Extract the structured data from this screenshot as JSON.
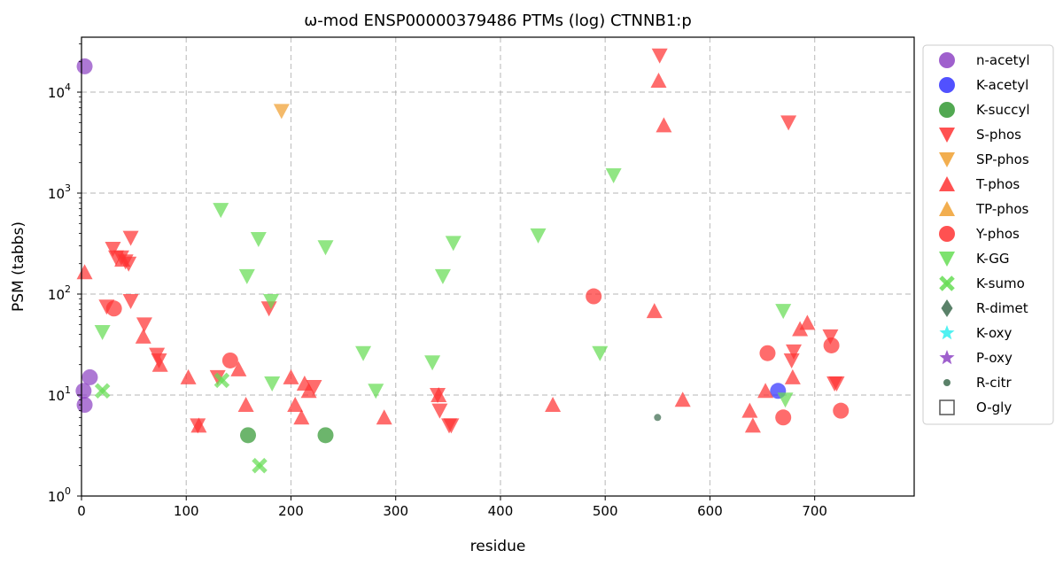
{
  "chart_data": {
    "type": "scatter",
    "title": "ω-mod ENSP00000379486 PTMs (log) CTNNB1:p",
    "xlabel": "residue",
    "ylabel": "PSM (tabbs)",
    "xlim": [
      0,
      795
    ],
    "ylim": [
      1,
      35000
    ],
    "yscale": "log",
    "xticks": [
      "0",
      "100",
      "200",
      "300",
      "400",
      "500",
      "600",
      "700"
    ],
    "xtick_values": [
      0,
      100,
      200,
      300,
      400,
      500,
      600,
      700
    ],
    "yticks": [
      "10",
      "10",
      "10",
      "10",
      "10"
    ],
    "ytick_exps": [
      "0",
      "1",
      "2",
      "3",
      "4"
    ],
    "ytick_values": [
      1,
      10,
      100,
      1000,
      10000
    ],
    "grid": true,
    "legend_position": "right-outside",
    "series": [
      {
        "name": "n-acetyl",
        "color": "#8e44c4",
        "marker": "circle",
        "points": [
          [
            3,
            18000
          ],
          [
            2,
            11
          ],
          [
            3,
            8
          ],
          [
            8,
            15
          ]
        ]
      },
      {
        "name": "K-acetyl",
        "color": "#3333ff",
        "marker": "circle",
        "points": [
          [
            665,
            11
          ]
        ]
      },
      {
        "name": "K-succyl",
        "color": "#339933",
        "marker": "circle",
        "points": [
          [
            159,
            4
          ],
          [
            233,
            4
          ]
        ]
      },
      {
        "name": "S-phos",
        "color": "#ff3333",
        "marker": "triangle-down",
        "points": [
          [
            30,
            280
          ],
          [
            33,
            230
          ],
          [
            38,
            230
          ],
          [
            42,
            210
          ],
          [
            45,
            200
          ],
          [
            47,
            360
          ],
          [
            24,
            75
          ],
          [
            47,
            85
          ],
          [
            60,
            50
          ],
          [
            72,
            25
          ],
          [
            74,
            22
          ],
          [
            111,
            5
          ],
          [
            130,
            15
          ],
          [
            179,
            72
          ],
          [
            222,
            12
          ],
          [
            340,
            10
          ],
          [
            342,
            7
          ],
          [
            351,
            5
          ],
          [
            353,
            5
          ],
          [
            552,
            23000
          ],
          [
            675,
            5000
          ],
          [
            680,
            27
          ],
          [
            678,
            22
          ],
          [
            715,
            38
          ],
          [
            719,
            13
          ],
          [
            721,
            13
          ]
        ]
      },
      {
        "name": "SP-phos",
        "color": "#f0a030",
        "marker": "triangle-down",
        "points": [
          [
            191,
            6500
          ]
        ]
      },
      {
        "name": "T-phos",
        "color": "#ff3333",
        "marker": "triangle-up",
        "points": [
          [
            3,
            165
          ],
          [
            39,
            220
          ],
          [
            59,
            38
          ],
          [
            75,
            20
          ],
          [
            102,
            15
          ],
          [
            112,
            5
          ],
          [
            150,
            18
          ],
          [
            157,
            8
          ],
          [
            200,
            15
          ],
          [
            204,
            8
          ],
          [
            213,
            13
          ],
          [
            210,
            6
          ],
          [
            217,
            11
          ],
          [
            289,
            6
          ],
          [
            341,
            10
          ],
          [
            450,
            8
          ],
          [
            547,
            68
          ],
          [
            551,
            13000
          ],
          [
            556,
            4700
          ],
          [
            574,
            9
          ],
          [
            638,
            7
          ],
          [
            641,
            5
          ],
          [
            653,
            11
          ],
          [
            679,
            15
          ],
          [
            686,
            45
          ],
          [
            693,
            52
          ]
        ]
      },
      {
        "name": "TP-phos",
        "color": "#f0a030",
        "marker": "triangle-up",
        "points": []
      },
      {
        "name": "Y-phos",
        "color": "#ff3333",
        "marker": "circle",
        "points": [
          [
            31,
            72
          ],
          [
            142,
            22
          ],
          [
            489,
            95
          ],
          [
            655,
            26
          ],
          [
            670,
            6
          ],
          [
            716,
            31
          ],
          [
            725,
            7
          ]
        ]
      },
      {
        "name": "K-GG",
        "color": "#66dd55",
        "marker": "triangle-down",
        "points": [
          [
            20,
            42
          ],
          [
            133,
            680
          ],
          [
            158,
            150
          ],
          [
            169,
            350
          ],
          [
            181,
            85
          ],
          [
            182,
            13
          ],
          [
            233,
            290
          ],
          [
            269,
            26
          ],
          [
            281,
            11
          ],
          [
            335,
            21
          ],
          [
            345,
            150
          ],
          [
            355,
            320
          ],
          [
            436,
            380
          ],
          [
            495,
            26
          ],
          [
            508,
            1500
          ],
          [
            670,
            68
          ],
          [
            672,
            9
          ]
        ]
      },
      {
        "name": "K-sumo",
        "color": "#66dd55",
        "marker": "x",
        "points": [
          [
            20,
            11
          ],
          [
            134,
            14
          ],
          [
            170,
            2
          ]
        ]
      },
      {
        "name": "R-dimet",
        "color": "#3d6b4f",
        "marker": "diamond",
        "points": []
      },
      {
        "name": "K-oxy",
        "color": "#33eeee",
        "marker": "star",
        "points": []
      },
      {
        "name": "P-oxy",
        "color": "#8e44c4",
        "marker": "star",
        "points": []
      },
      {
        "name": "R-citr",
        "color": "#3d6b4f",
        "marker": "small-circle",
        "points": [
          [
            550,
            6
          ]
        ]
      },
      {
        "name": "O-gly",
        "color": "#555555",
        "marker": "square-open",
        "points": []
      }
    ]
  }
}
